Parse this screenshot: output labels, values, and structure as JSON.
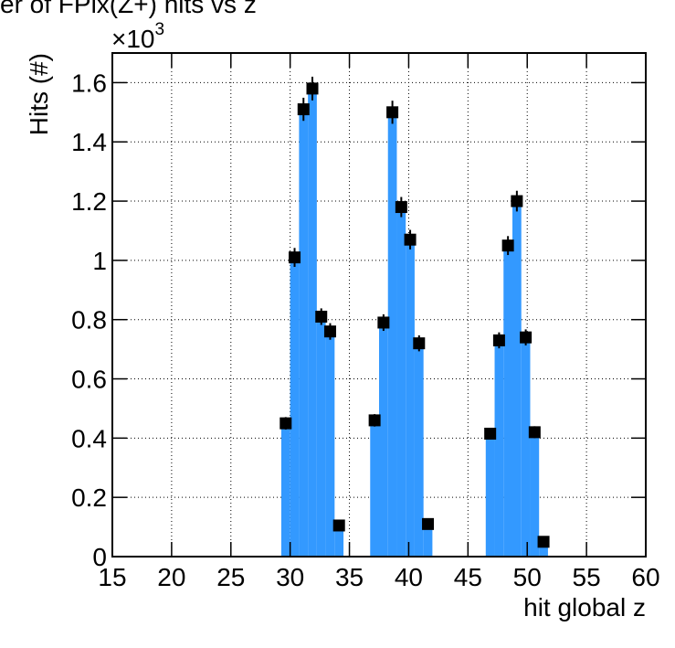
{
  "chart_data": {
    "type": "histogram",
    "title": "er of FPix(Z+) hits vs z",
    "x_label": "hit global z",
    "y_label": "Hits (#)",
    "y_multiplier_base": "×10",
    "y_multiplier_exp": "3",
    "color": "#3399ff",
    "marker_color": "#000000",
    "bins": [
      15,
      15.75,
      16.5,
      17.25,
      18,
      18.75,
      19.5,
      20.25,
      21,
      21.75,
      22.5,
      23.25,
      24,
      24.75,
      25.5,
      26.25,
      27,
      27.75,
      28.5,
      29.25,
      30,
      30.75,
      31.5,
      32.25,
      33,
      33.75,
      34.5,
      35.25,
      36,
      36.75,
      37.5,
      38.25,
      39,
      39.75,
      40.5,
      41.25,
      42,
      42.75,
      43.5,
      44.25,
      45,
      45.75,
      46.5,
      47.25,
      48,
      48.75,
      49.5,
      50.25,
      51,
      51.75,
      52.5,
      53.25,
      54,
      54.75,
      55.5,
      56.25,
      57,
      57.75,
      58.5,
      59.25,
      60
    ],
    "values": [
      0,
      0,
      0,
      0,
      0,
      0,
      0,
      0,
      0,
      0,
      0,
      0,
      0,
      0,
      0,
      0,
      0,
      0,
      0,
      0.45,
      1.01,
      1.51,
      1.58,
      0.81,
      0.76,
      0.105,
      0,
      0,
      0,
      0.46,
      0.79,
      1.5,
      1.18,
      1.07,
      0.72,
      0.11,
      0,
      0,
      0,
      0,
      0,
      0,
      0.415,
      0.73,
      1.05,
      1.2,
      0.74,
      0.42,
      0.05,
      0,
      0,
      0,
      0,
      0,
      0,
      0,
      0,
      0,
      0,
      0
    ],
    "errors": [
      0,
      0,
      0,
      0,
      0,
      0,
      0,
      0,
      0,
      0,
      0,
      0,
      0,
      0,
      0,
      0,
      0,
      0,
      0,
      0.021,
      0.032,
      0.039,
      0.04,
      0.028,
      0.028,
      0.01,
      0,
      0,
      0,
      0.021,
      0.028,
      0.039,
      0.034,
      0.033,
      0.027,
      0.01,
      0,
      0,
      0,
      0,
      0,
      0,
      0.02,
      0.027,
      0.032,
      0.035,
      0.027,
      0.02,
      0.007,
      0,
      0,
      0,
      0,
      0,
      0,
      0,
      0,
      0,
      0,
      0
    ],
    "xlim": [
      15,
      60
    ],
    "ylim": [
      0,
      1.7
    ],
    "xticks": [
      15,
      20,
      25,
      30,
      35,
      40,
      45,
      50,
      55,
      60
    ],
    "yticks": [
      0,
      0.2,
      0.4,
      0.6,
      0.8,
      1,
      1.2,
      1.4,
      1.6
    ],
    "grid": true
  }
}
